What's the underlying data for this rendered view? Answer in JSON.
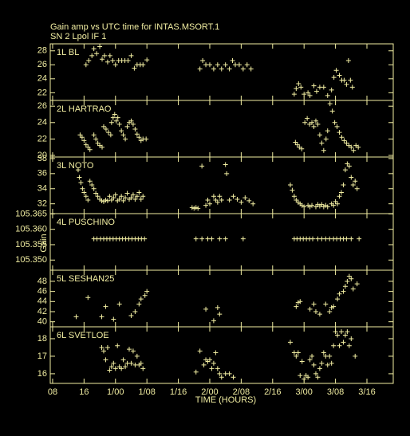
{
  "title": "Gain amp vs UTC time for INTAS.MSORT.1",
  "subtitle": "SN 2  Lpol  IF 1",
  "y_label": "Gain",
  "x_axis": {
    "label": "TIME (HOURS)",
    "xlim": [
      7.4,
      94.7
    ],
    "xticks": [
      {
        "value": 8,
        "label": "08"
      },
      16,
      {
        "value": 24,
        "label": "1/00"
      },
      {
        "value": 32,
        "label": "1/08"
      },
      {
        "value": 40,
        "label": "1/16"
      },
      {
        "value": 48,
        "label": "2/00"
      },
      {
        "value": 56,
        "label": "2/08"
      },
      {
        "value": 64,
        "label": "2/16"
      },
      {
        "value": 72,
        "label": "3/00"
      },
      {
        "value": 80,
        "label": "3/08"
      },
      {
        "value": 88,
        "label": "3/16"
      }
    ]
  },
  "chart_data": [
    {
      "type": "scatter",
      "label": "1L BL",
      "color": "#f2eea2",
      "ylim": [
        20.9,
        29.0
      ],
      "yticks": [
        22,
        24,
        26,
        28
      ],
      "x": [
        16.5,
        17.2,
        18.0,
        18.5,
        19.2,
        20.0,
        20.6,
        21.2,
        22.0,
        22.6,
        23.3,
        24.0,
        24.8,
        25.6,
        26.4,
        27.2,
        28.0,
        28.8,
        29.5,
        30.3,
        31.0,
        32.0,
        45.5,
        46.2,
        47.0,
        48.0,
        49.0,
        50.0,
        51.0,
        52.0,
        53.0,
        53.8,
        54.5,
        55.5,
        56.5,
        57.5,
        58.5,
        69.5,
        70.0,
        70.6,
        71.2,
        72.0,
        73.0,
        73.5,
        74.5,
        75.2,
        76.0,
        77.0,
        78.0,
        79.0,
        79.6,
        80.2,
        81.0,
        81.6,
        82.2,
        82.8,
        83.3,
        83.8,
        84.3
      ],
      "values": [
        26.0,
        26.6,
        27.3,
        28.3,
        27.6,
        28.6,
        26.8,
        27.3,
        26.4,
        27.3,
        26.6,
        26.0,
        26.6,
        26.6,
        26.6,
        26.6,
        27.3,
        25.5,
        26.0,
        26.0,
        26.0,
        26.7,
        25.4,
        26.6,
        26.0,
        26.0,
        25.4,
        26.0,
        25.4,
        26.0,
        25.4,
        26.6,
        26.0,
        26.0,
        25.4,
        26.0,
        25.4,
        21.8,
        22.6,
        23.3,
        22.8,
        21.8,
        22.0,
        21.6,
        23.0,
        22.2,
        22.8,
        22.8,
        21.6,
        22.4,
        24.2,
        25.2,
        24.5,
        23.8,
        23.8,
        23.2,
        26.6,
        23.8,
        22.8
      ]
    },
    {
      "type": "scatter",
      "label": "2L HARTRAO",
      "color": "#f2eea2",
      "ylim": [
        19.8,
        26.7
      ],
      "yticks": [
        20,
        22,
        24,
        26
      ],
      "x": [
        15.0,
        15.5,
        16.0,
        16.5,
        17.0,
        17.5,
        18.5,
        19.0,
        19.5,
        20.0,
        20.6,
        21.0,
        21.6,
        22.2,
        22.8,
        23.0,
        23.4,
        23.8,
        24.2,
        24.6,
        25.0,
        25.5,
        26.0,
        26.5,
        27.0,
        27.5,
        28.0,
        28.5,
        29.0,
        29.5,
        30.0,
        30.5,
        31.0,
        31.8,
        69.8,
        70.3,
        70.8,
        71.4,
        72.2,
        72.8,
        73.4,
        74.0,
        74.5,
        75.0,
        75.5,
        76.0,
        76.5,
        77.0,
        77.6,
        78.0,
        78.6,
        79.2,
        79.8,
        80.4,
        81.0,
        81.6,
        82.2,
        82.8,
        83.4,
        84.0,
        84.6,
        85.2,
        85.8
      ],
      "values": [
        22.5,
        22.2,
        21.8,
        21.3,
        21.0,
        20.7,
        22.5,
        22.0,
        21.5,
        21.2,
        21.0,
        23.5,
        23.2,
        22.8,
        22.5,
        24.0,
        24.6,
        25.0,
        24.2,
        24.6,
        23.8,
        23.0,
        22.5,
        22.0,
        23.5,
        24.0,
        24.2,
        23.8,
        23.2,
        22.6,
        22.2,
        21.8,
        22.0,
        22.0,
        21.6,
        21.3,
        21.0,
        20.8,
        24.0,
        24.5,
        23.8,
        24.0,
        23.5,
        24.2,
        23.8,
        22.5,
        21.5,
        20.6,
        22.0,
        23.0,
        26.3,
        25.4,
        24.0,
        23.5,
        22.8,
        22.2,
        21.8,
        21.5,
        21.2,
        21.0,
        20.6,
        21.2,
        21.0
      ]
    },
    {
      "type": "scatter",
      "label": "3L NOTO",
      "color": "#f2eea2",
      "ylim": [
        30.7,
        38.2
      ],
      "yticks": [
        32,
        34,
        36,
        38
      ],
      "x": [
        14.5,
        14.8,
        15.2,
        15.6,
        16.0,
        16.5,
        17.0,
        17.5,
        18.0,
        18.5,
        19.0,
        19.5,
        20.0,
        20.5,
        21.0,
        21.5,
        22.0,
        22.5,
        23.0,
        23.5,
        24.0,
        24.5,
        25.0,
        25.5,
        26.0,
        26.5,
        27.0,
        27.5,
        28.0,
        28.5,
        29.0,
        29.5,
        30.0,
        30.5,
        31.0,
        43.5,
        44.0,
        44.5,
        45.0,
        46.0,
        47.0,
        47.5,
        48.0,
        49.0,
        49.5,
        50.0,
        50.5,
        51.0,
        52.0,
        52.3,
        53.0,
        54.0,
        55.0,
        56.0,
        57.0,
        58.0,
        59.0,
        68.5,
        69.0,
        69.5,
        70.0,
        70.5,
        71.0,
        71.5,
        72.0,
        73.0,
        73.5,
        74.0,
        75.0,
        75.5,
        76.0,
        76.5,
        77.0,
        77.5,
        78.0,
        79.0,
        79.5,
        80.0,
        80.5,
        81.0,
        81.5,
        82.0,
        82.5,
        83.0,
        83.5,
        84.0,
        84.5,
        85.0,
        85.5
      ],
      "values": [
        36.5,
        35.5,
        34.8,
        34.0,
        33.5,
        33.0,
        32.5,
        35.0,
        34.5,
        34.0,
        33.4,
        33.0,
        32.6,
        32.4,
        32.3,
        32.5,
        32.4,
        33.0,
        32.5,
        32.8,
        33.2,
        32.4,
        32.6,
        33.0,
        32.4,
        32.8,
        33.4,
        32.6,
        32.8,
        33.2,
        32.6,
        33.0,
        33.5,
        32.6,
        33.0,
        31.5,
        31.4,
        31.5,
        31.4,
        37.0,
        31.8,
        32.5,
        32.0,
        33.0,
        32.5,
        32.2,
        33.0,
        32.5,
        37.2,
        36.0,
        32.5,
        33.0,
        32.6,
        32.2,
        32.8,
        32.4,
        32.0,
        34.5,
        33.8,
        33.0,
        32.5,
        32.2,
        32.0,
        31.8,
        31.6,
        31.8,
        31.6,
        31.8,
        31.6,
        31.9,
        31.7,
        31.9,
        31.6,
        31.8,
        31.6,
        32.0,
        31.8,
        32.3,
        32.0,
        33.0,
        33.5,
        34.5,
        36.5,
        37.3,
        37.0,
        35.5,
        34.5,
        35.0,
        34.0
      ]
    },
    {
      "type": "scatter",
      "label": "4L PUSCHINO",
      "color": "#f2eea2",
      "ylim": [
        105.3467,
        105.3651
      ],
      "yticks": [
        105.365,
        {
          "value": 105.36,
          "label": "105.360"
        },
        105.355,
        {
          "value": 105.35,
          "label": "105.350"
        }
      ],
      "x": [
        18.5,
        19.3,
        20.2,
        21.0,
        21.8,
        22.6,
        23.4,
        24.2,
        25.0,
        25.8,
        26.6,
        27.4,
        28.2,
        29.0,
        29.8,
        30.6,
        31.4,
        44.5,
        46.0,
        47.5,
        48.5,
        50.5,
        52.0,
        56.5,
        69.5,
        70.2,
        71.0,
        71.8,
        72.6,
        73.4,
        74.2,
        75.5,
        76.5,
        77.5,
        78.5,
        79.5,
        80.3,
        81.2,
        82.0,
        82.8,
        84.0,
        86.0
      ],
      "values": [
        105.3569,
        105.3569,
        105.3569,
        105.3569,
        105.3569,
        105.3569,
        105.3569,
        105.3569,
        105.3569,
        105.3569,
        105.3569,
        105.3569,
        105.3569,
        105.3569,
        105.3569,
        105.3569,
        105.3569,
        105.3569,
        105.3569,
        105.3569,
        105.3569,
        105.3569,
        105.3569,
        105.3569,
        105.3569,
        105.3569,
        105.3569,
        105.3569,
        105.3569,
        105.3569,
        105.3569,
        105.3569,
        105.3569,
        105.3569,
        105.3569,
        105.3569,
        105.3569,
        105.3569,
        105.3569,
        105.3569,
        105.3569,
        105.3569
      ]
    },
    {
      "type": "scatter",
      "label": "5L SESHAN25",
      "color": "#f2eea2",
      "ylim": [
        39.0,
        50.2
      ],
      "yticks": [
        40,
        42,
        44,
        46,
        48
      ],
      "x": [
        14.0,
        17.0,
        20.5,
        21.5,
        23.5,
        25.0,
        28.0,
        29.0,
        30.0,
        30.5,
        31.5,
        32.0,
        47.0,
        49.0,
        50.0,
        50.5,
        70.0,
        70.5,
        71.0,
        73.5,
        74.5,
        75.0,
        76.0,
        77.5,
        78.5,
        79.0,
        79.5,
        80.5,
        81.0,
        82.0,
        82.5,
        83.0,
        83.5,
        84.0,
        84.5,
        85.5
      ],
      "values": [
        41.0,
        44.8,
        41.0,
        43.0,
        40.5,
        43.5,
        41.2,
        42.0,
        43.5,
        44.5,
        45.2,
        46.0,
        42.5,
        40.2,
        42.8,
        41.5,
        43.0,
        43.8,
        44.0,
        42.5,
        43.5,
        42.0,
        41.5,
        43.5,
        42.0,
        42.8,
        43.0,
        44.5,
        45.5,
        46.0,
        47.0,
        48.0,
        49.0,
        48.5,
        46.5,
        47.5
      ]
    },
    {
      "type": "scatter",
      "label": "6L SVETLOE",
      "color": "#f2eea2",
      "ylim": [
        15.45,
        18.68
      ],
      "yticks": [
        16,
        17,
        18
      ],
      "x": [
        20.5,
        21.0,
        21.5,
        22.0,
        22.5,
        23.0,
        23.5,
        24.0,
        24.5,
        25.0,
        25.5,
        26.0,
        26.5,
        27.0,
        27.5,
        28.0,
        28.5,
        29.0,
        29.5,
        30.0,
        30.5,
        31.0,
        44.5,
        45.5,
        46.5,
        47.0,
        47.5,
        48.0,
        48.5,
        49.0,
        49.5,
        50.0,
        50.5,
        51.0,
        52.0,
        53.0,
        54.0,
        68.5,
        69.5,
        70.0,
        70.5,
        71.0,
        71.5,
        72.0,
        72.5,
        73.0,
        73.5,
        74.0,
        74.5,
        75.0,
        75.5,
        76.0,
        76.5,
        77.0,
        77.5,
        78.0,
        78.5,
        79.0,
        79.5,
        80.0,
        80.5,
        81.0,
        81.5,
        82.0,
        82.5,
        83.0,
        83.5,
        84.0,
        85.0
      ],
      "values": [
        17.5,
        17.3,
        16.8,
        17.5,
        16.2,
        16.4,
        16.6,
        16.3,
        17.6,
        16.4,
        16.3,
        16.8,
        16.4,
        16.6,
        17.4,
        16.6,
        17.3,
        16.5,
        17.0,
        16.5,
        16.6,
        16.3,
        16.1,
        17.3,
        16.5,
        16.8,
        16.7,
        16.8,
        16.3,
        16.6,
        17.2,
        16.3,
        16.0,
        15.8,
        16.0,
        16.0,
        15.8,
        17.8,
        17.2,
        17.0,
        17.2,
        15.9,
        16.7,
        15.7,
        15.9,
        15.8,
        16.8,
        17.0,
        16.5,
        16.0,
        15.8,
        16.3,
        16.6,
        17.2,
        17.0,
        16.5,
        17.0,
        16.6,
        17.6,
        18.4,
        18.2,
        17.6,
        18.4,
        17.8,
        18.2,
        18.4,
        17.6,
        18.0,
        17.0
      ]
    }
  ]
}
